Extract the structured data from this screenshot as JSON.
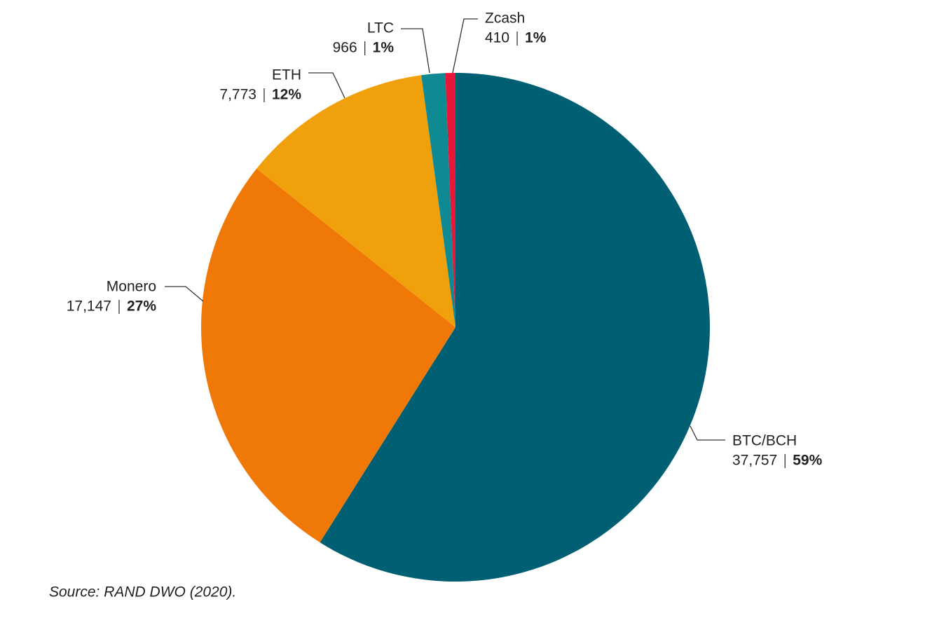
{
  "chart_data": {
    "type": "pie",
    "categories": [
      "BTC/BCH",
      "Monero",
      "ETH",
      "LTC",
      "Zcash"
    ],
    "values": [
      37757,
      17147,
      7773,
      966,
      410
    ],
    "value_labels": [
      "37,757",
      "17,147",
      "7,773",
      "966",
      "410"
    ],
    "percents": [
      59,
      27,
      12,
      1,
      1
    ],
    "percent_labels": [
      "59%",
      "27%",
      "12%",
      "1%",
      "1%"
    ],
    "colors": [
      "#005f73",
      "#f07807",
      "#f0a00a",
      "#0f8a93",
      "#e8173a"
    ],
    "start_angle": 0,
    "direction": "clockwise",
    "source": "Source: RAND DWO (2020)."
  }
}
